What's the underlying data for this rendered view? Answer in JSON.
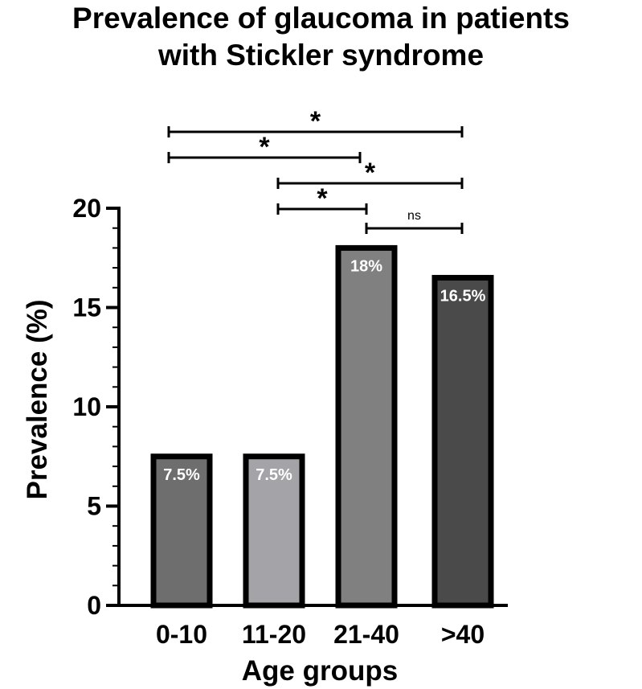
{
  "title_lines": [
    "Prevalence of glaucoma in patients",
    "with Stickler syndrome"
  ],
  "chart_data": {
    "type": "bar",
    "title": "Prevalence of glaucoma in patients with Stickler syndrome",
    "xlabel": "Age groups",
    "ylabel": "Prevalence (%)",
    "categories": [
      "0-10",
      "11-20",
      "21-40",
      ">40"
    ],
    "values": [
      7.5,
      7.5,
      18,
      16.5
    ],
    "value_labels": [
      "7.5%",
      "7.5%",
      "18%",
      "16.5%"
    ],
    "bar_colors": [
      "#6e6e6e",
      "#a3a3a8",
      "#808080",
      "#4a4a4a"
    ],
    "ylim": [
      0,
      20
    ],
    "yticks": [
      0,
      5,
      10,
      15,
      20
    ],
    "minor_tick_step": 1,
    "grid": false,
    "significance": [
      {
        "from": 0,
        "to": 3,
        "label": "*"
      },
      {
        "from": 0,
        "to": 2,
        "label": "*"
      },
      {
        "from": 1,
        "to": 3,
        "label": "*"
      },
      {
        "from": 1,
        "to": 2,
        "label": "*"
      },
      {
        "from": 2,
        "to": 3,
        "label": "ns"
      }
    ]
  }
}
